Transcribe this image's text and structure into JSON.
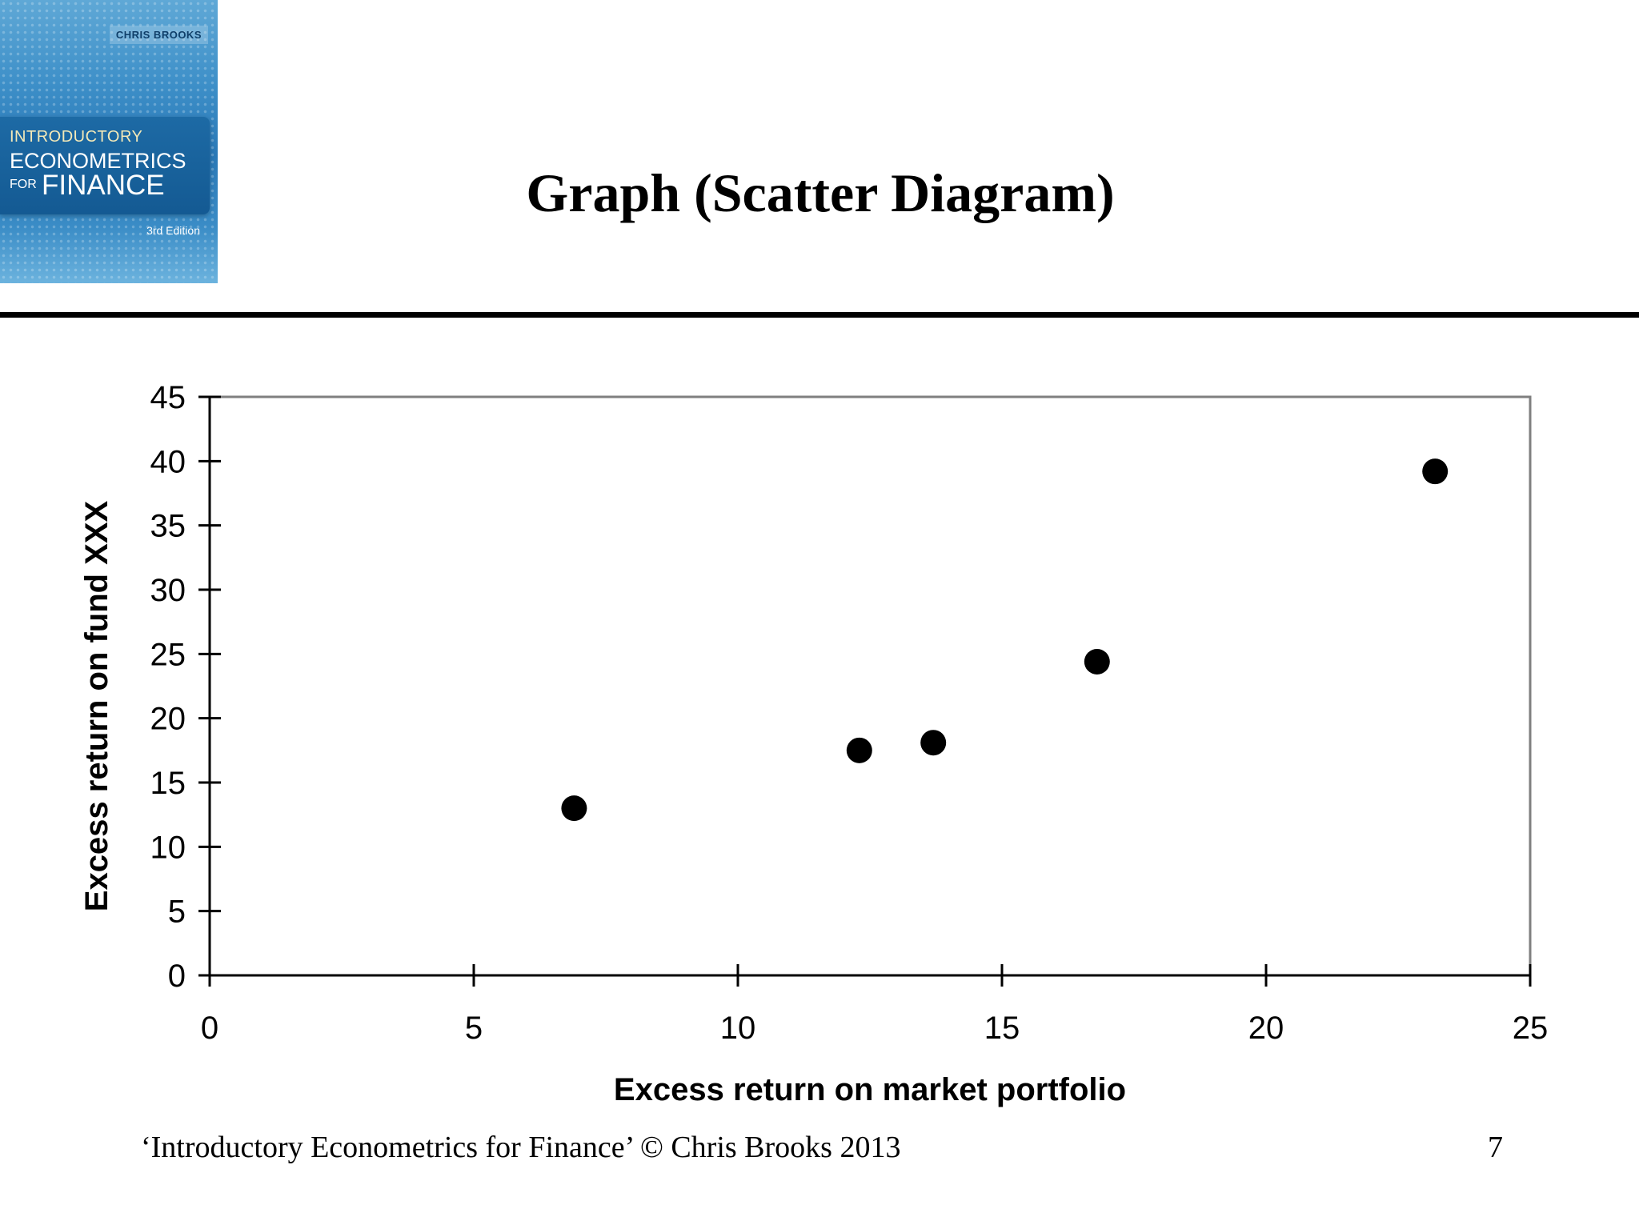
{
  "slide": {
    "title": "Graph (Scatter Diagram)",
    "footer": "‘Introductory Econometrics for Finance’ © Chris Brooks 2013",
    "page_number": "7"
  },
  "book_cover": {
    "author": "CHRIS BROOKS",
    "title_line1": "INTRODUCTORY",
    "title_line2": "ECONOMETRICS",
    "title_line3_prefix": "FOR",
    "title_line3": "FINANCE",
    "edition": "3rd Edition"
  },
  "chart_data": {
    "type": "scatter",
    "title": "",
    "xlabel": "Excess return on market portfolio",
    "ylabel": "Excess return on fund XXX",
    "xlim": [
      0,
      25
    ],
    "ylim": [
      0,
      45
    ],
    "xticks": [
      0,
      5,
      10,
      15,
      20,
      25
    ],
    "yticks": [
      0,
      5,
      10,
      15,
      20,
      25,
      30,
      35,
      40,
      45
    ],
    "grid": false,
    "legend": "none",
    "marker_color": "#000000",
    "series": [
      {
        "points": [
          {
            "x": 6.9,
            "y": 13.0
          },
          {
            "x": 12.3,
            "y": 17.5
          },
          {
            "x": 13.7,
            "y": 18.1
          },
          {
            "x": 16.8,
            "y": 24.4
          },
          {
            "x": 23.2,
            "y": 39.2
          }
        ]
      }
    ]
  }
}
